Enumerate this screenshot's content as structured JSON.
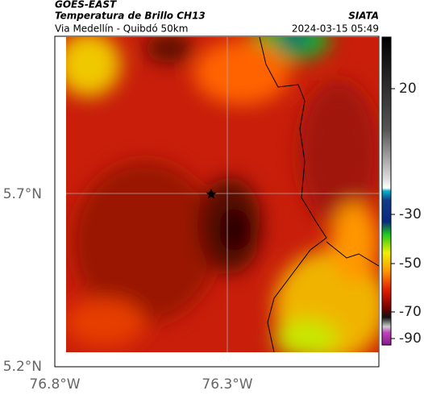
{
  "header": {
    "satellite": "GOES-EAST",
    "product": "Temperatura de Brillo CH13",
    "route": "Via Medellín - Quibdó 50km",
    "source": "SIATA",
    "timestamp": "2024-03-15 05:49"
  },
  "axes": {
    "lat_ticks": [
      "5.7°N",
      "5.2°N"
    ],
    "lon_ticks": [
      "76.8°W",
      "76.3°W"
    ]
  },
  "colorbar": {
    "ticks": [
      20,
      -30,
      -50,
      -70,
      -90
    ]
  }
}
